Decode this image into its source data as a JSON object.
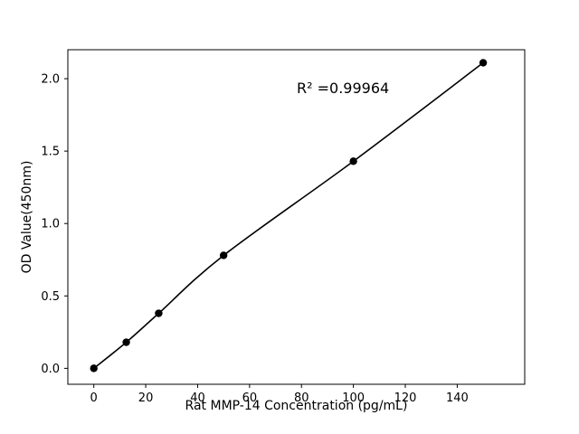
{
  "chart_data": {
    "type": "scatter",
    "title": "",
    "xlabel": "Rat MMP-14 Concentration (pg/mL)",
    "ylabel": "OD Value(450nm)",
    "annotation": "R² =0.99964",
    "x": [
      0,
      12.5,
      25,
      50,
      100,
      150
    ],
    "y": [
      0.0,
      0.18,
      0.38,
      0.78,
      1.43,
      2.11
    ],
    "xlim": [
      -10,
      166
    ],
    "ylim": [
      -0.11,
      2.2
    ],
    "xticks": [
      0,
      20,
      40,
      60,
      80,
      100,
      120,
      140
    ],
    "yticks": [
      0.0,
      0.5,
      1.0,
      1.5,
      2.0
    ],
    "grid": false,
    "legend": null,
    "line_color": "#000000",
    "marker_color": "#000000",
    "background_color": "#ffffff"
  }
}
